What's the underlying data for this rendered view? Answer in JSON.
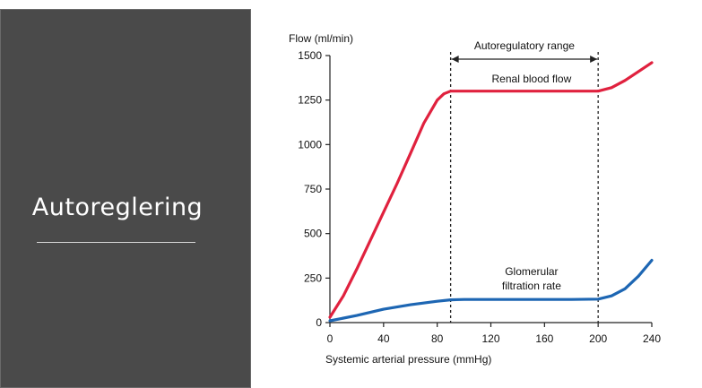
{
  "slide": {
    "title": "Autoreglering",
    "panel_color": "#4a4a4a"
  },
  "chart_data": {
    "type": "line",
    "ylabel": "Flow (ml/min)",
    "xlabel": "Systemic arterial pressure (mmHg)",
    "xlim": [
      0,
      240
    ],
    "ylim": [
      0,
      1500
    ],
    "x_ticks": [
      "0",
      "40",
      "80",
      "120",
      "160",
      "200",
      "240"
    ],
    "y_ticks": [
      "0",
      "250",
      "500",
      "750",
      "1000",
      "1250",
      "1500"
    ],
    "grid": false,
    "autoregulatory_range": {
      "label": "Autoregulatory range",
      "x_start": 90,
      "x_end": 200
    },
    "series": [
      {
        "name": "Renal blood flow",
        "color": "#e0213e",
        "x": [
          0,
          10,
          20,
          30,
          40,
          50,
          60,
          70,
          80,
          85,
          90,
          100,
          120,
          140,
          160,
          180,
          200,
          210,
          220,
          230,
          240
        ],
        "y": [
          30,
          150,
          300,
          460,
          620,
          780,
          950,
          1120,
          1250,
          1285,
          1300,
          1300,
          1300,
          1300,
          1300,
          1300,
          1300,
          1320,
          1360,
          1410,
          1460
        ]
      },
      {
        "name": "Glomerular filtration rate",
        "label_lines": [
          "Glomerular",
          "filtration rate"
        ],
        "color": "#1d66b3",
        "x": [
          0,
          20,
          40,
          60,
          80,
          90,
          100,
          120,
          140,
          160,
          180,
          200,
          210,
          220,
          230,
          240
        ],
        "y": [
          10,
          40,
          75,
          100,
          120,
          128,
          130,
          130,
          130,
          130,
          130,
          132,
          150,
          190,
          260,
          350
        ]
      }
    ]
  }
}
